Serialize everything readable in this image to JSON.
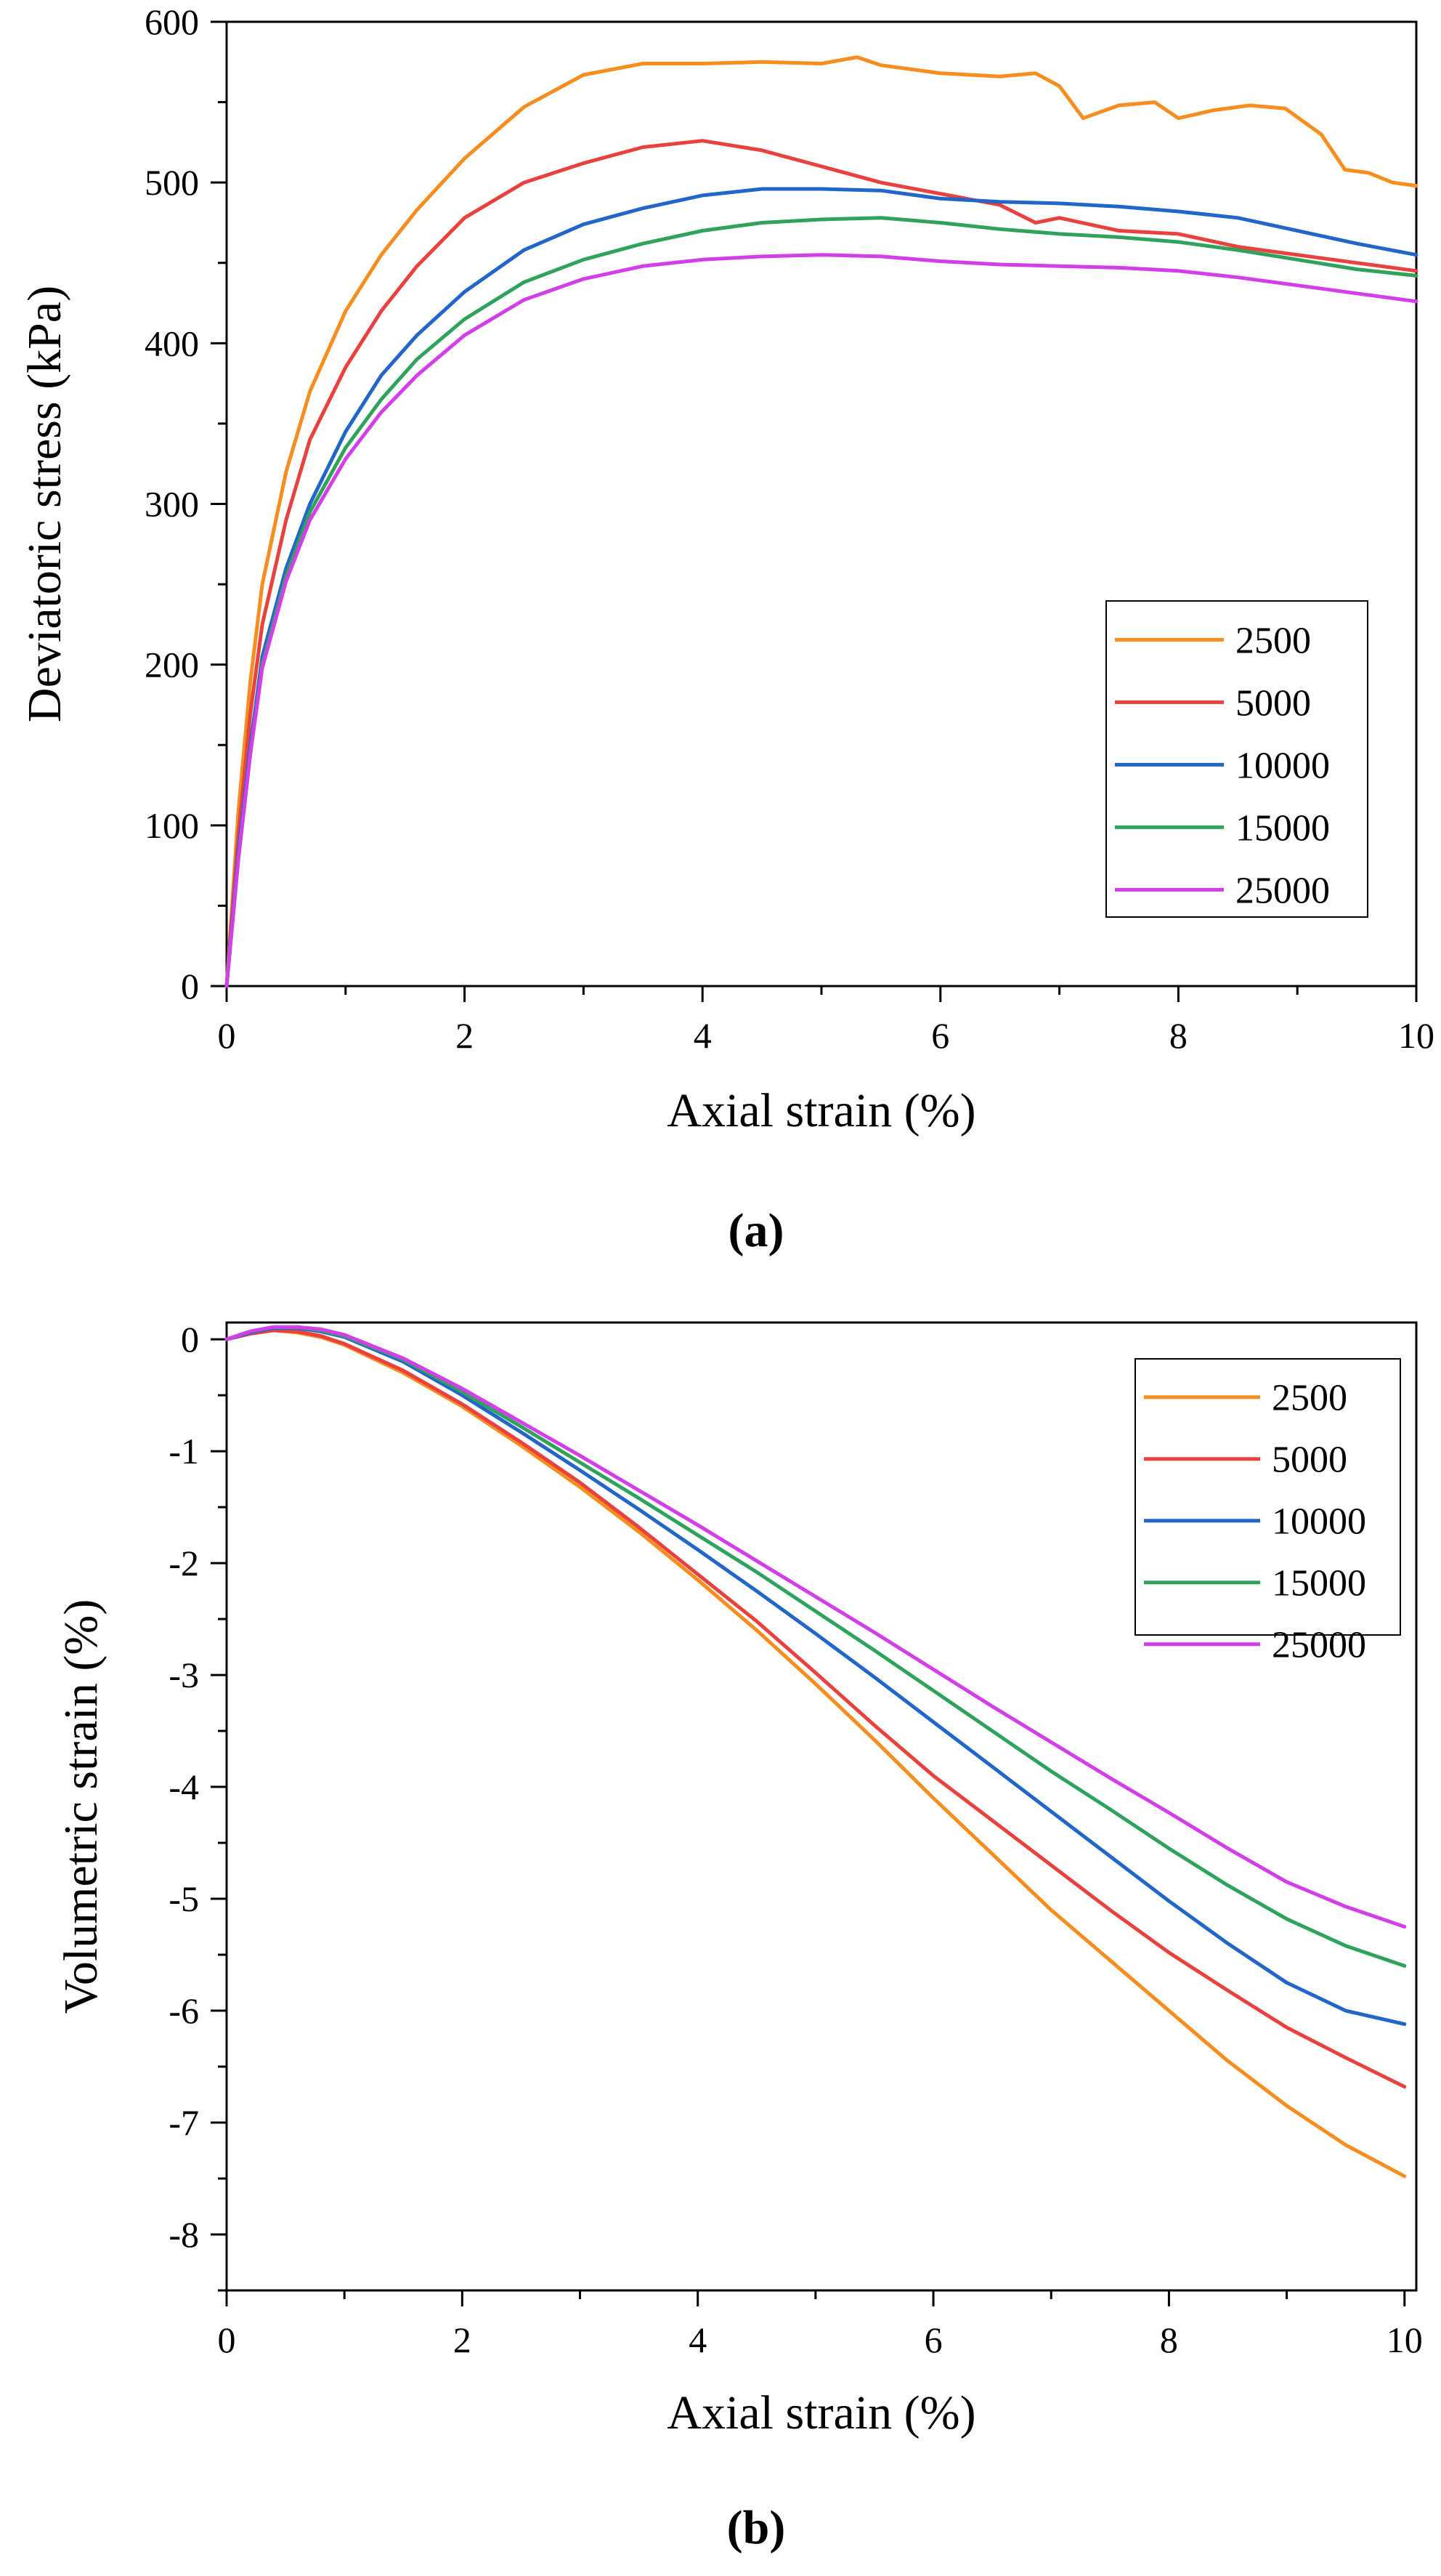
{
  "chart_data": [
    {
      "type": "line",
      "panel_label": "(a)",
      "xlabel": "Axial strain (%)",
      "ylabel": "Deviatoric stress (kPa)",
      "xlim": [
        0,
        10
      ],
      "ylim": [
        0,
        600
      ],
      "xticks": [
        0,
        2,
        4,
        6,
        8,
        10
      ],
      "yticks": [
        0,
        100,
        200,
        300,
        400,
        500,
        600
      ],
      "grid": false,
      "legend_position": "lower-right",
      "series": [
        {
          "name": "2500",
          "color": "#F78C1F",
          "x": [
            0,
            0.1,
            0.2,
            0.3,
            0.5,
            0.7,
            1.0,
            1.3,
            1.6,
            2.0,
            2.5,
            3.0,
            3.5,
            4.0,
            4.5,
            5.0,
            5.3,
            5.5,
            6.0,
            6.5,
            6.8,
            7.0,
            7.2,
            7.5,
            7.8,
            8.0,
            8.3,
            8.6,
            8.9,
            9.2,
            9.4,
            9.6,
            9.8,
            10.0
          ],
          "y": [
            0,
            110,
            190,
            250,
            320,
            370,
            420,
            455,
            483,
            515,
            547,
            567,
            574,
            574,
            575,
            574,
            578,
            573,
            568,
            566,
            568,
            560,
            540,
            548,
            550,
            540,
            545,
            548,
            546,
            530,
            508,
            506,
            500,
            498
          ]
        },
        {
          "name": "5000",
          "color": "#E8413E",
          "x": [
            0,
            0.1,
            0.2,
            0.3,
            0.5,
            0.7,
            1.0,
            1.3,
            1.6,
            2.0,
            2.5,
            3.0,
            3.5,
            4.0,
            4.5,
            5.0,
            5.5,
            6.0,
            6.5,
            6.8,
            7.0,
            7.5,
            8.0,
            8.5,
            9.0,
            9.5,
            10.0
          ],
          "y": [
            0,
            95,
            170,
            225,
            290,
            340,
            385,
            420,
            448,
            478,
            500,
            512,
            522,
            526,
            520,
            510,
            500,
            493,
            486,
            475,
            478,
            470,
            468,
            460,
            455,
            450,
            445
          ]
        },
        {
          "name": "10000",
          "color": "#2166C8",
          "x": [
            0,
            0.1,
            0.2,
            0.3,
            0.5,
            0.7,
            1.0,
            1.3,
            1.6,
            2.0,
            2.5,
            3.0,
            3.5,
            4.0,
            4.5,
            5.0,
            5.5,
            6.0,
            6.5,
            7.0,
            7.5,
            8.0,
            8.5,
            9.0,
            9.5,
            10.0
          ],
          "y": [
            0,
            85,
            150,
            205,
            260,
            300,
            345,
            380,
            405,
            432,
            458,
            474,
            484,
            492,
            496,
            496,
            495,
            490,
            488,
            487,
            485,
            482,
            478,
            470,
            462,
            455
          ]
        },
        {
          "name": "15000",
          "color": "#2FA35B",
          "x": [
            0,
            0.1,
            0.2,
            0.3,
            0.5,
            0.7,
            1.0,
            1.3,
            1.6,
            2.0,
            2.5,
            3.0,
            3.5,
            4.0,
            4.5,
            5.0,
            5.5,
            6.0,
            6.5,
            7.0,
            7.5,
            8.0,
            8.5,
            9.0,
            9.5,
            10.0
          ],
          "y": [
            0,
            80,
            145,
            200,
            255,
            295,
            335,
            365,
            390,
            415,
            438,
            452,
            462,
            470,
            475,
            477,
            478,
            475,
            471,
            468,
            466,
            463,
            458,
            452,
            446,
            442
          ]
        },
        {
          "name": "25000",
          "color": "#D23FE8",
          "x": [
            0,
            0.1,
            0.2,
            0.3,
            0.5,
            0.7,
            1.0,
            1.3,
            1.6,
            2.0,
            2.5,
            3.0,
            3.5,
            4.0,
            4.5,
            5.0,
            5.5,
            6.0,
            6.5,
            7.0,
            7.5,
            8.0,
            8.5,
            9.0,
            9.5,
            10.0
          ],
          "y": [
            0,
            80,
            145,
            198,
            252,
            290,
            328,
            357,
            380,
            405,
            427,
            440,
            448,
            452,
            454,
            455,
            454,
            451,
            449,
            448,
            447,
            445,
            441,
            436,
            431,
            426
          ]
        }
      ]
    },
    {
      "type": "line",
      "panel_label": "(b)",
      "xlabel": "Axial strain (%)",
      "ylabel": "Volumetric strain (%)",
      "xlim": [
        0,
        10.1
      ],
      "ylim": [
        -8.5,
        0.15
      ],
      "xticks": [
        0,
        2,
        4,
        6,
        8,
        10
      ],
      "yticks": [
        0,
        -1,
        -2,
        -3,
        -4,
        -5,
        -6,
        -7,
        -8
      ],
      "ytick_labels": [
        "0",
        "-1",
        "-2",
        "-3",
        "-4",
        "-5",
        "-6",
        "-7",
        "-8"
      ],
      "grid": false,
      "legend_position": "top-right",
      "series": [
        {
          "name": "2500",
          "color": "#F78C1F",
          "x": [
            0,
            0.2,
            0.4,
            0.6,
            0.8,
            1.0,
            1.5,
            2.0,
            2.5,
            3.0,
            3.5,
            4.0,
            4.5,
            5.0,
            5.5,
            6.0,
            6.5,
            7.0,
            7.5,
            8.0,
            8.5,
            9.0,
            9.5,
            10.0
          ],
          "y": [
            0,
            0.05,
            0.08,
            0.06,
            0.02,
            -0.05,
            -0.3,
            -0.6,
            -0.95,
            -1.32,
            -1.72,
            -2.15,
            -2.6,
            -3.08,
            -3.58,
            -4.1,
            -4.6,
            -5.1,
            -5.55,
            -6.0,
            -6.45,
            -6.85,
            -7.2,
            -7.48
          ]
        },
        {
          "name": "5000",
          "color": "#E8413E",
          "x": [
            0,
            0.2,
            0.4,
            0.6,
            0.8,
            1.0,
            1.5,
            2.0,
            2.5,
            3.0,
            3.5,
            4.0,
            4.5,
            5.0,
            5.5,
            6.0,
            6.5,
            7.0,
            7.5,
            8.0,
            8.5,
            9.0,
            9.5,
            10.0
          ],
          "y": [
            0,
            0.05,
            0.08,
            0.07,
            0.03,
            -0.04,
            -0.28,
            -0.58,
            -0.92,
            -1.28,
            -1.68,
            -2.1,
            -2.52,
            -2.98,
            -3.45,
            -3.9,
            -4.3,
            -4.7,
            -5.1,
            -5.48,
            -5.82,
            -6.15,
            -6.42,
            -6.68
          ]
        },
        {
          "name": "10000",
          "color": "#2166C8",
          "x": [
            0,
            0.2,
            0.4,
            0.6,
            0.8,
            1.0,
            1.5,
            2.0,
            2.5,
            3.0,
            3.5,
            4.0,
            4.5,
            5.0,
            5.5,
            6.0,
            6.5,
            7.0,
            7.5,
            8.0,
            8.5,
            9.0,
            9.5,
            10.0
          ],
          "y": [
            0,
            0.06,
            0.1,
            0.1,
            0.07,
            0.02,
            -0.2,
            -0.5,
            -0.83,
            -1.17,
            -1.52,
            -1.88,
            -2.25,
            -2.63,
            -3.02,
            -3.42,
            -3.82,
            -4.22,
            -4.62,
            -5.02,
            -5.4,
            -5.75,
            -6.0,
            -6.12
          ]
        },
        {
          "name": "15000",
          "color": "#2FA35B",
          "x": [
            0,
            0.2,
            0.4,
            0.6,
            0.8,
            1.0,
            1.5,
            2.0,
            2.5,
            3.0,
            3.5,
            4.0,
            4.5,
            5.0,
            5.5,
            6.0,
            6.5,
            7.0,
            7.5,
            8.0,
            8.5,
            9.0,
            9.5,
            10.0
          ],
          "y": [
            0,
            0.07,
            0.11,
            0.11,
            0.08,
            0.03,
            -0.18,
            -0.47,
            -0.78,
            -1.1,
            -1.42,
            -1.75,
            -2.08,
            -2.43,
            -2.78,
            -3.14,
            -3.5,
            -3.86,
            -4.2,
            -4.55,
            -4.88,
            -5.18,
            -5.42,
            -5.6
          ]
        },
        {
          "name": "25000",
          "color": "#D23FE8",
          "x": [
            0,
            0.2,
            0.4,
            0.6,
            0.8,
            1.0,
            1.5,
            2.0,
            2.5,
            3.0,
            3.5,
            4.0,
            4.5,
            5.0,
            5.5,
            6.0,
            6.5,
            7.0,
            7.5,
            8.0,
            8.5,
            9.0,
            9.5,
            10.0
          ],
          "y": [
            0,
            0.07,
            0.11,
            0.11,
            0.09,
            0.04,
            -0.17,
            -0.44,
            -0.74,
            -1.04,
            -1.35,
            -1.66,
            -1.98,
            -2.3,
            -2.62,
            -2.95,
            -3.28,
            -3.6,
            -3.92,
            -4.23,
            -4.55,
            -4.85,
            -5.07,
            -5.25
          ]
        }
      ]
    }
  ]
}
